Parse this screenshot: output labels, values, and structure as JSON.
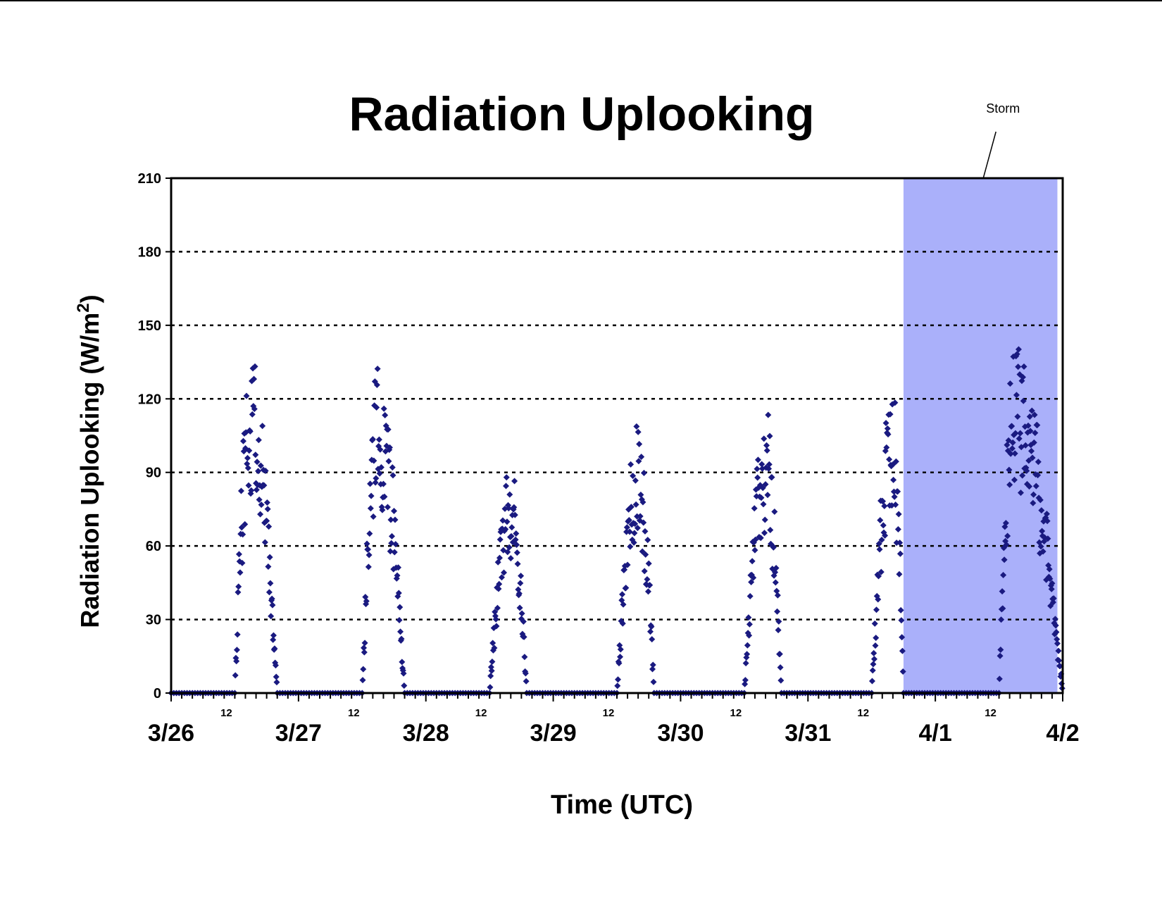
{
  "chart_data": {
    "type": "scatter",
    "title": "Radiation Uplooking",
    "xlabel": "Time (UTC)",
    "ylabel": "Radiation Uplooking (W/m",
    "ylabel_sup": "2",
    "ylabel_close": ")",
    "ylim": [
      0,
      210
    ],
    "yticks": [
      0,
      30,
      60,
      90,
      120,
      150,
      180,
      210
    ],
    "grid": "horizontal dotted",
    "xlim": [
      "3/26 00:00",
      "4/2 00:00"
    ],
    "x_major_labels": [
      "3/26",
      "3/27",
      "3/28",
      "3/29",
      "3/30",
      "3/31",
      "4/1",
      "4/2"
    ],
    "x_minor_label": "12",
    "marker": "diamond",
    "colors": {
      "points": "#1a1a80",
      "storm_band": "#aab0fa",
      "grid": "#000000"
    },
    "annotations": [
      {
        "text": "Storm",
        "x_start": "3/31 18:00",
        "x_end": "4/1 23:00"
      }
    ],
    "series": [
      {
        "day_peaks": [
          {
            "day": "3/26",
            "start_hour": 12,
            "peak_hour": 15,
            "end_hour": 20,
            "peak": 143
          },
          {
            "day": "3/27",
            "start_hour": 12,
            "peak_hour": 15,
            "end_hour": 20,
            "peak": 140
          },
          {
            "day": "3/28",
            "start_hour": 12,
            "peak_hour": 16,
            "end_hour": 19,
            "peak": 96
          },
          {
            "day": "3/29",
            "start_hour": 12,
            "peak_hour": 16,
            "end_hour": 19,
            "peak": 110
          },
          {
            "day": "3/30",
            "start_hour": 12,
            "peak_hour": 16,
            "end_hour": 19,
            "peak": 118
          },
          {
            "day": "3/31",
            "start_hour": 12,
            "peak_hour": 16,
            "end_hour": 18,
            "peak": 127
          },
          {
            "day": "4/1",
            "start_hour": 12,
            "peak_hour": 15,
            "end_hour": 24,
            "peak": 150
          }
        ]
      }
    ]
  }
}
